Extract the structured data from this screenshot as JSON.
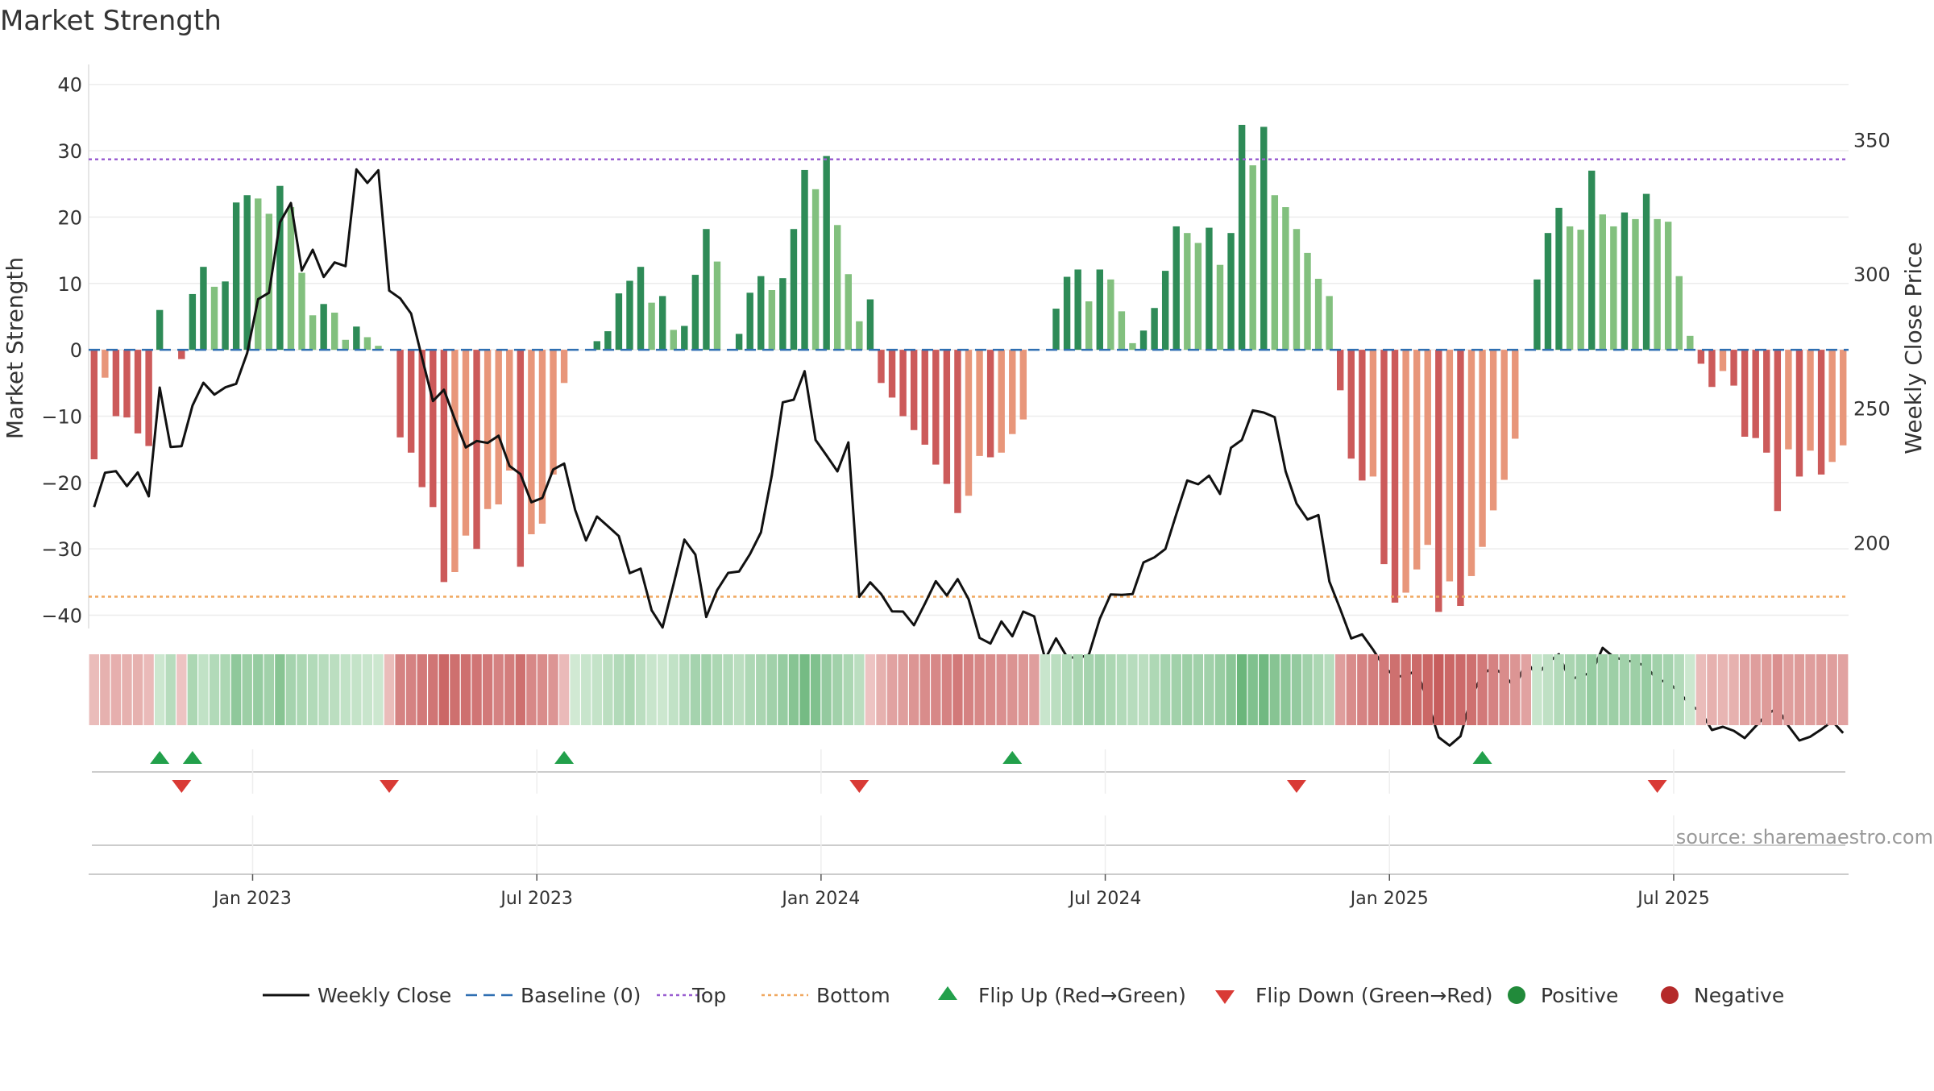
{
  "chart_data": {
    "type": "bar",
    "title": "Market Strength",
    "ylabel_left": "Market Strength",
    "ylabel_right": "Weekly Close Price",
    "source": "source: sharemaestro.com",
    "ylim_left": [
      -42,
      43
    ],
    "ylim_right": [
      168,
      378
    ],
    "left_ticks": [
      40,
      30,
      20,
      10,
      0,
      -10,
      -20,
      -30,
      -40
    ],
    "left_tick_labels": [
      "40",
      "30",
      "20",
      "10",
      "0",
      "−10",
      "−20",
      "−30",
      "−40"
    ],
    "right_ticks": [
      350,
      300,
      250,
      200
    ],
    "right_tick_labels": [
      "350",
      "300",
      "250",
      "200"
    ],
    "x_tick_labels": [
      "Jan 2023",
      "Jul 2023",
      "Jan 2024",
      "Jul 2024",
      "Jan 2025",
      "Jul 2025"
    ],
    "x_tick_weeks": [
      14.5,
      40.5,
      66.5,
      92.5,
      118.5,
      144.5
    ],
    "top_line": 28.7,
    "bottom_line": -37.2,
    "baseline": 0,
    "strength": [
      -16.5,
      -4.2,
      -10,
      -10.2,
      -12.6,
      -14.5,
      6,
      0,
      -1.4,
      8.4,
      12.5,
      9.5,
      10.3,
      22.2,
      23.3,
      22.8,
      20.5,
      24.7,
      21.5,
      11.6,
      5.2,
      6.9,
      5.6,
      1.5,
      3.5,
      1.9,
      0.6,
      0,
      -13.2,
      -15.5,
      -20.7,
      -23.7,
      -35,
      -33.5,
      -28,
      -30,
      -24,
      -23.3,
      -18.2,
      -32.7,
      -27.8,
      -26.2,
      -18.8,
      -5,
      0,
      0,
      1.3,
      2.8,
      8.5,
      10.4,
      12.5,
      7.1,
      8.1,
      3,
      3.6,
      11.3,
      18.2,
      13.3,
      0,
      2.4,
      8.6,
      11.1,
      9,
      10.8,
      18.2,
      27.1,
      24.2,
      29.2,
      18.8,
      11.4,
      4.3,
      7.6,
      -5,
      -7.2,
      -10,
      -12.1,
      -14.3,
      -17.3,
      -20.2,
      -24.6,
      -22,
      -16,
      -16.2,
      -15.5,
      -12.7,
      -10.5,
      0,
      0,
      6.2,
      11,
      12.1,
      7.3,
      12.1,
      10.6,
      5.8,
      1,
      2.9,
      6.3,
      11.9,
      18.6,
      17.6,
      16.1,
      18.4,
      12.8,
      17.6,
      33.9,
      27.8,
      33.6,
      23.3,
      21.5,
      18.2,
      14.6,
      10.7,
      8.1,
      -6.1,
      -16.4,
      -19.7,
      -19.1,
      -32.3,
      -38.1,
      -36.6,
      -33.1,
      -29.4,
      -39.5,
      -34.9,
      -38.6,
      -34.1,
      -29.7,
      -24.2,
      -19.6,
      -13.4,
      0,
      10.6,
      17.6,
      21.4,
      18.6,
      18.1,
      27,
      20.4,
      18.6,
      20.7,
      19.7,
      23.5,
      19.7,
      19.3,
      11.1,
      2.1,
      -2.1,
      -5.6,
      -3.2,
      -5.4,
      -13.1,
      -13.3,
      -15.5,
      -24.3,
      -15,
      -19.1,
      -15.2,
      -18.8,
      -16.9,
      -14.4
    ],
    "weekly_close": [
      213.2,
      226,
      226.6,
      221,
      226.1,
      217.2,
      257.7,
      235.6,
      235.9,
      251,
      259.5,
      255.1,
      257.8,
      259.1,
      270.5,
      290.6,
      293,
      319.2,
      326.4,
      301.3,
      309,
      298.9,
      304.3,
      302.9,
      338.9,
      333.9,
      338.6,
      293.8,
      290.9,
      285.2,
      268.8,
      252.7,
      256.9,
      245.9,
      235.4,
      237.8,
      237.1,
      239.8,
      228.5,
      225.5,
      215,
      216.6,
      227.2,
      229.4,
      212.2,
      200.8,
      209.7,
      206.1,
      202.4,
      188.6,
      190.3,
      174.8,
      168.4,
      184.3,
      201.1,
      195.5,
      172.3,
      182.3,
      188.7,
      189.2,
      195.7,
      203.8,
      225.1,
      252.2,
      253.2,
      263.8,
      238.2,
      232.4,
      226.5,
      237.3,
      179.8,
      185.2,
      180.8,
      174.4,
      174.3,
      169.2,
      177.2,
      185.6,
      180.3,
      186.4,
      178.9,
      164.5,
      162.4,
      170.6,
      165.1,
      174.3,
      172.5,
      156.6,
      164.3,
      157.4,
      157,
      158.2,
      171.6,
      180.7,
      180.5,
      180.8,
      192.6,
      194.5,
      197.6,
      210.5,
      223.1,
      221.7,
      224.9,
      218.1,
      235.3,
      238.2,
      249.2,
      248.4,
      246.7,
      226.5,
      214.5,
      208.6,
      210.2,
      185.5,
      175.2,
      164.3,
      165.8,
      160.1,
      153.8,
      150.1,
      150.4,
      152.5,
      140.7,
      127.5,
      124.4,
      127.9,
      142.6,
      151,
      153.5,
      150.6,
      146,
      155.8,
      150.6,
      155.4,
      158.4,
      148.8,
      150.5,
      151.4,
      160.8,
      157.4,
      156.2,
      155.5,
      153.9,
      148.8,
      148.1,
      144.2,
      139.7,
      136.9,
      130.2,
      131.4,
      129.9,
      127.2,
      131.6,
      136,
      138.4,
      131.7,
      126.3,
      127.7,
      130.4,
      133.5,
      129.1
    ],
    "top_strip": [
      -14,
      -20,
      -21,
      -20,
      -20,
      -15,
      10,
      20,
      -10,
      25,
      15,
      22,
      25,
      38,
      32,
      35,
      30,
      42,
      28,
      25,
      22,
      20,
      18,
      15,
      14,
      12,
      10,
      -14,
      -45,
      -45,
      -50,
      -52,
      -60,
      -55,
      -55,
      -52,
      -50,
      -45,
      -48,
      -55,
      -42,
      -40,
      -35,
      -15,
      8,
      12,
      14,
      18,
      22,
      25,
      18,
      12,
      10,
      15,
      22,
      28,
      30,
      25,
      22,
      18,
      24,
      26,
      30,
      35,
      42,
      50,
      45,
      36,
      30,
      25,
      18,
      -10,
      -20,
      -28,
      -30,
      -35,
      -40,
      -42,
      -45,
      -50,
      -45,
      -42,
      -40,
      -38,
      -36,
      -34,
      -30,
      12,
      18,
      22,
      26,
      28,
      30,
      25,
      22,
      20,
      18,
      24,
      28,
      30,
      32,
      30,
      30,
      34,
      40,
      55,
      45,
      52,
      42,
      40,
      36,
      30,
      25,
      20,
      -30,
      -40,
      -45,
      -48,
      -50,
      -55,
      -55,
      -58,
      -60,
      -65,
      -60,
      -58,
      -55,
      -50,
      -45,
      -40,
      -35,
      -28,
      12,
      16,
      22,
      26,
      28,
      35,
      30,
      32,
      30,
      32,
      35,
      30,
      28,
      22,
      10,
      -14,
      -20,
      -18,
      -20,
      -28,
      -30,
      -32,
      -38,
      -30,
      -32,
      -30,
      -32,
      -30,
      -28
    ],
    "flip_up_weeks": [
      6,
      9,
      43,
      84,
      127
    ],
    "flip_down_weeks": [
      8,
      27,
      70,
      110,
      143
    ],
    "colors": {
      "strong_green": "#2e8b57",
      "light_green": "#82c07e",
      "strong_red": "#cc5a5a",
      "light_red": "#e8967a",
      "close_line": "#111111",
      "baseline": "#2f6fb2",
      "top_line": "#9a5fd1",
      "bottom_line": "#f0a860",
      "flip_up": "#22a04b",
      "flip_down": "#d93a35",
      "positive": "#218a3a",
      "negative": "#b52a2a",
      "grid": "#ececec"
    },
    "legend": [
      {
        "label": "Weekly Close",
        "kind": "line"
      },
      {
        "label": "Baseline (0)",
        "kind": "dash"
      },
      {
        "label": "Top",
        "kind": "dot-purple"
      },
      {
        "label": "Bottom",
        "kind": "dot-orange"
      },
      {
        "label": "Flip Up (Red→Green)",
        "kind": "tri-up"
      },
      {
        "label": "Flip Down (Green→Red)",
        "kind": "tri-down"
      },
      {
        "label": "Positive",
        "kind": "dot-pos"
      },
      {
        "label": "Negative",
        "kind": "dot-neg"
      }
    ]
  }
}
